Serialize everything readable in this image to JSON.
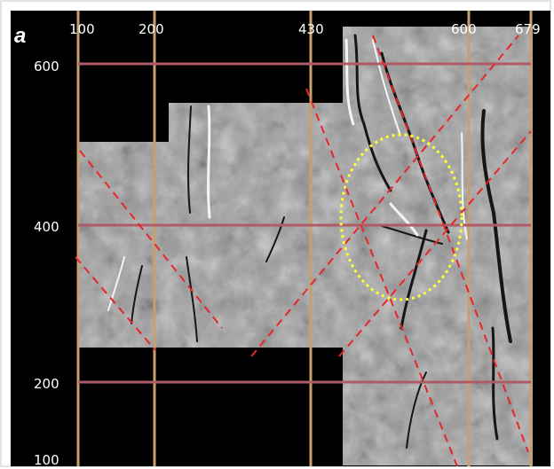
{
  "figure": {
    "panel_label": "a",
    "x_ticks": [
      "100",
      "200",
      "430",
      "600",
      "679"
    ],
    "y_ticks": [
      "600",
      "400",
      "200",
      "100"
    ],
    "colors": {
      "background": "#000000",
      "frame": "#ffffff",
      "grid_vertical": "#c8a06e",
      "grid_horizontal": "#b05a66",
      "dashed_lines": "#e8262a",
      "ellipse": "#ffff33",
      "terrain": "#9a9a9a"
    }
  }
}
